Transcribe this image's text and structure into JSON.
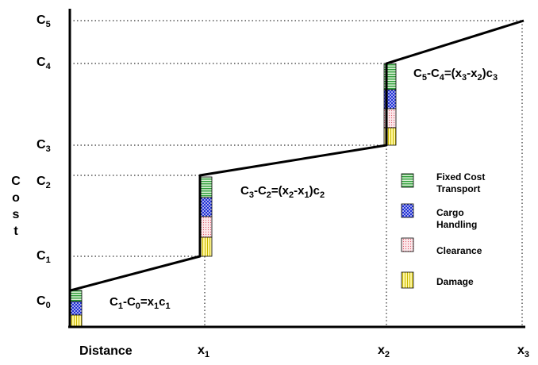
{
  "y_axis_label": [
    "C",
    "o",
    "s",
    "t"
  ],
  "x_axis_label": "Distance",
  "cost_levels": [
    {
      "base": "C",
      "sub": "0"
    },
    {
      "base": "C",
      "sub": "1"
    },
    {
      "base": "C",
      "sub": "2"
    },
    {
      "base": "C",
      "sub": "3"
    },
    {
      "base": "C",
      "sub": "4"
    },
    {
      "base": "C",
      "sub": "5"
    }
  ],
  "distance_marks": [
    {
      "base": "x",
      "sub": "1"
    },
    {
      "base": "x",
      "sub": "2"
    },
    {
      "base": "x",
      "sub": "3"
    }
  ],
  "equations": [
    {
      "parts": [
        [
          "C",
          ""
        ],
        [
          "1",
          "sub"
        ],
        [
          "-C",
          ""
        ],
        [
          "0",
          "sub"
        ],
        [
          "=x",
          ""
        ],
        [
          "1",
          "sub"
        ],
        [
          "c",
          ""
        ],
        [
          "1",
          "sub"
        ]
      ]
    },
    {
      "parts": [
        [
          "C",
          ""
        ],
        [
          "3",
          "sub"
        ],
        [
          "-C",
          ""
        ],
        [
          "2",
          "sub"
        ],
        [
          "=(x",
          ""
        ],
        [
          "2",
          "sub"
        ],
        [
          "-x",
          ""
        ],
        [
          "1",
          "sub"
        ],
        [
          ")c",
          ""
        ],
        [
          "2",
          "sub"
        ]
      ]
    },
    {
      "parts": [
        [
          "C",
          ""
        ],
        [
          "5",
          "sub"
        ],
        [
          "-C",
          ""
        ],
        [
          "4",
          "sub"
        ],
        [
          "=(x",
          ""
        ],
        [
          "3",
          "sub"
        ],
        [
          "-x",
          ""
        ],
        [
          "2",
          "sub"
        ],
        [
          ")c",
          ""
        ],
        [
          "3",
          "sub"
        ]
      ]
    }
  ],
  "legend": [
    {
      "key": "fixed",
      "lines": [
        "Fixed Cost",
        "Transport"
      ],
      "pattern": "horizontal-stripes",
      "color": "#2e9e3a"
    },
    {
      "key": "cargo",
      "lines": [
        "Cargo",
        "Handling"
      ],
      "pattern": "crosshatch",
      "color": "#1f2fd6"
    },
    {
      "key": "clearance",
      "lines": [
        "Clearance"
      ],
      "pattern": "dots",
      "color": "#e05a6a"
    },
    {
      "key": "damage",
      "lines": [
        "Damage"
      ],
      "pattern": "vertical-stripes",
      "color": "#f2e21a"
    }
  ],
  "colors": {
    "fixed_bg": "#d8f0d4",
    "cargo_bg": "#ffffff",
    "clearance_bg": "#fbe7ea",
    "damage_bg": "#fff7a0"
  }
}
